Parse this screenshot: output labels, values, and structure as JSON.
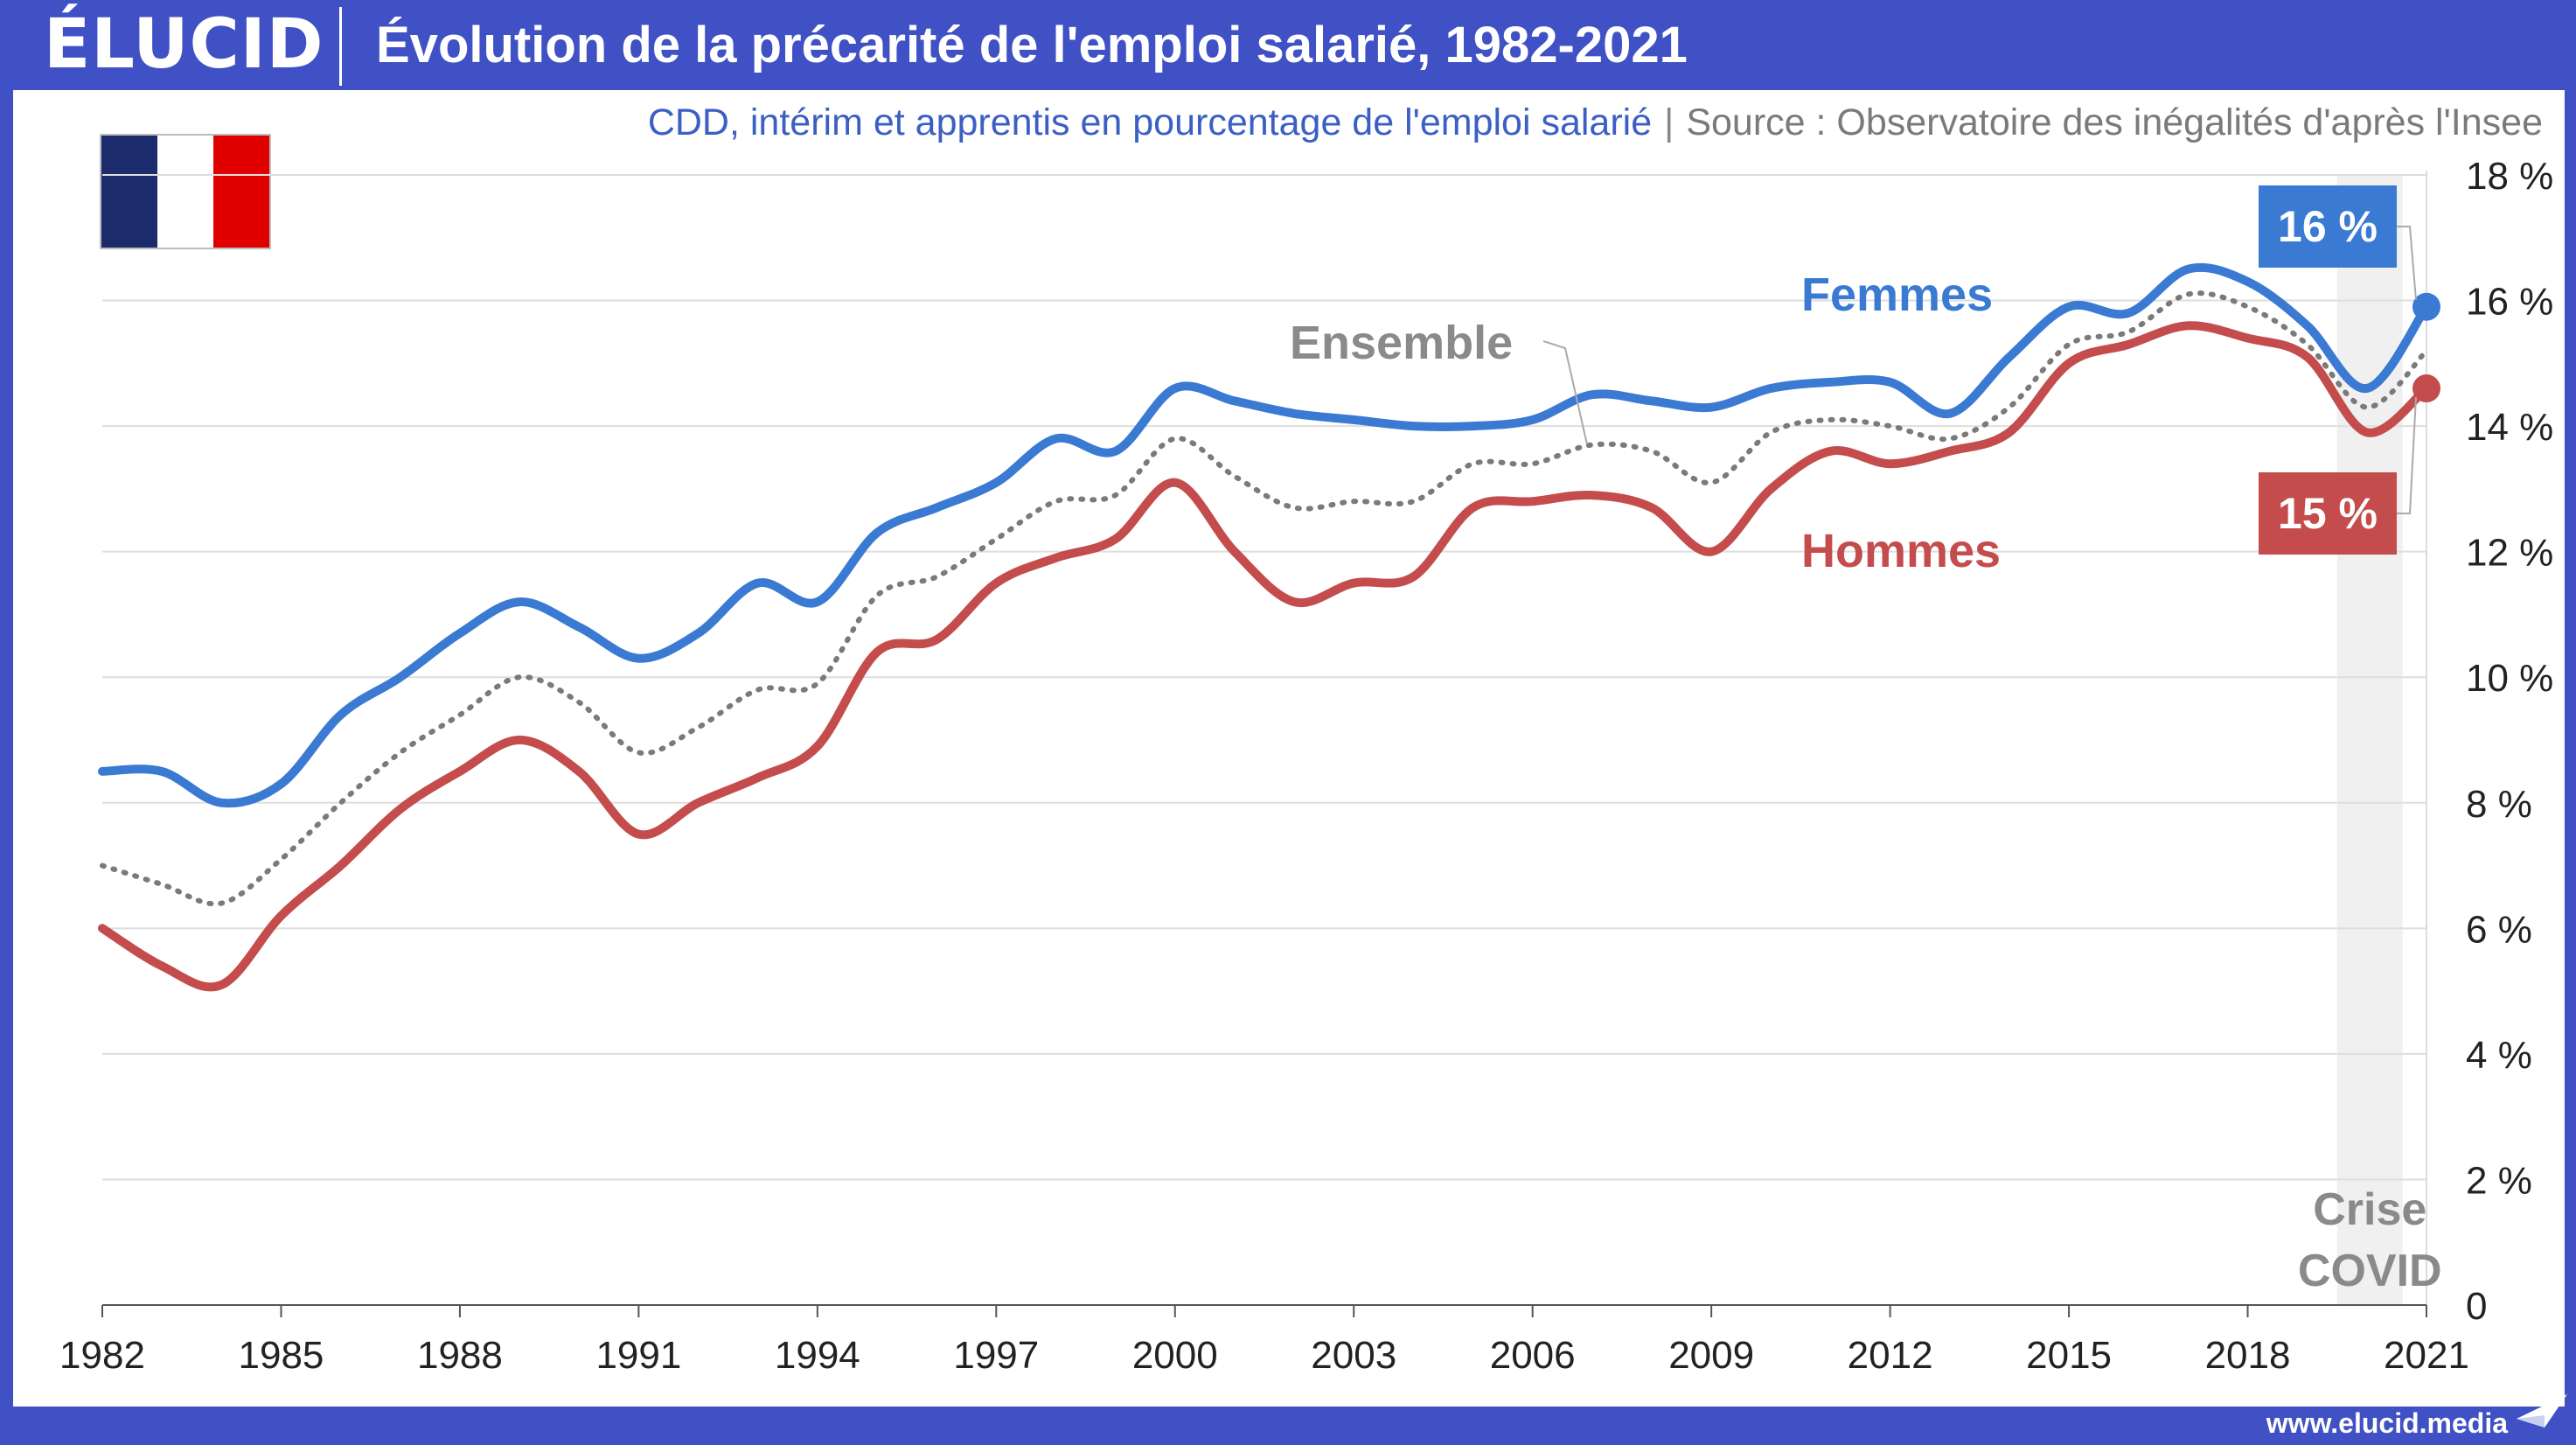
{
  "header": {
    "logo_text": "ÉLUCID",
    "title": "Évolution de la précarité de l'emploi salarié, 1982-2021",
    "subtitle": "CDD, intérim et apprentis en pourcentage de l'emploi salarié",
    "separator": "|",
    "source": "Source : Observatoire des inégalités d'après l'Insee"
  },
  "footer": {
    "website": "www.elucid.media"
  },
  "colors": {
    "frame": "#3f51c4",
    "femmes": "#3a7ad3",
    "hommes": "#c44c4c",
    "ensemble": "#7a7a7a",
    "covid_band": "#f0f0f0",
    "flag": [
      "#1c2b6b",
      "#ffffff",
      "#e00000"
    ]
  },
  "icons": {
    "flag": "france-flag-icon",
    "logo_mark": "elucid-logo-icon",
    "footer_mark": "paper-plane-icon"
  },
  "chart_data": {
    "type": "line",
    "title": "Évolution de la précarité de l'emploi salarié, 1982-2021",
    "subtitle": "CDD, intérim et apprentis en pourcentage de l'emploi salarié",
    "xlabel": "",
    "ylabel": "",
    "xlim": [
      1982,
      2021
    ],
    "ylim": [
      0,
      18
    ],
    "x_ticks": [
      "1982",
      "1985",
      "1988",
      "1991",
      "1994",
      "1997",
      "2000",
      "2003",
      "2006",
      "2009",
      "2012",
      "2015",
      "2018",
      "2021"
    ],
    "y_ticks": [
      "0",
      "2 %",
      "4 %",
      "6 %",
      "8 %",
      "10 %",
      "12 %",
      "14 %",
      "16 %",
      "18 %"
    ],
    "y_tick_values": [
      0,
      2,
      4,
      6,
      8,
      10,
      12,
      14,
      16,
      18
    ],
    "grid": true,
    "x": [
      1982,
      1983,
      1984,
      1985,
      1986,
      1987,
      1988,
      1989,
      1990,
      1991,
      1992,
      1993,
      1994,
      1995,
      1996,
      1997,
      1998,
      1999,
      2000,
      2001,
      2002,
      2003,
      2004,
      2005,
      2006,
      2007,
      2008,
      2009,
      2010,
      2011,
      2012,
      2013,
      2014,
      2015,
      2016,
      2017,
      2018,
      2019,
      2020,
      2021
    ],
    "series": [
      {
        "name": "Femmes",
        "values": [
          8.5,
          8.5,
          8.0,
          8.3,
          9.4,
          10.0,
          10.7,
          11.2,
          10.8,
          10.3,
          10.7,
          11.5,
          11.2,
          12.3,
          12.7,
          13.1,
          13.8,
          13.6,
          14.6,
          14.4,
          14.2,
          14.1,
          14.0,
          14.0,
          14.1,
          14.5,
          14.4,
          14.3,
          14.6,
          14.7,
          14.7,
          14.2,
          15.1,
          15.9,
          15.8,
          16.5,
          16.3,
          15.6,
          14.6,
          15.9
        ],
        "end_label": "16 %"
      },
      {
        "name": "Ensemble",
        "values": [
          7.0,
          6.7,
          6.4,
          7.1,
          8.0,
          8.8,
          9.4,
          10.0,
          9.6,
          8.8,
          9.2,
          9.8,
          9.9,
          11.3,
          11.6,
          12.2,
          12.8,
          12.9,
          13.8,
          13.2,
          12.7,
          12.8,
          12.8,
          13.4,
          13.4,
          13.7,
          13.6,
          13.1,
          13.9,
          14.1,
          14.0,
          13.8,
          14.3,
          15.3,
          15.5,
          16.1,
          15.9,
          15.3,
          14.3,
          15.2
        ]
      },
      {
        "name": "Hommes",
        "values": [
          6.0,
          5.4,
          5.1,
          6.2,
          7.0,
          7.9,
          8.5,
          9.0,
          8.5,
          7.5,
          8.0,
          8.4,
          8.9,
          10.4,
          10.6,
          11.5,
          11.9,
          12.2,
          13.1,
          12.0,
          11.2,
          11.5,
          11.6,
          12.7,
          12.8,
          12.9,
          12.7,
          12.0,
          13.0,
          13.6,
          13.4,
          13.6,
          13.9,
          15.0,
          15.3,
          15.6,
          15.4,
          15.1,
          13.9,
          14.6
        ],
        "end_label": "15 %"
      }
    ],
    "annotations": [
      {
        "text": "Crise",
        "x_range": [
          2019.5,
          2020.6
        ]
      },
      {
        "text": "COVID",
        "x_range": [
          2019.5,
          2020.6
        ]
      }
    ],
    "covid_band": [
      2019.5,
      2020.6
    ],
    "legend": "inline"
  }
}
